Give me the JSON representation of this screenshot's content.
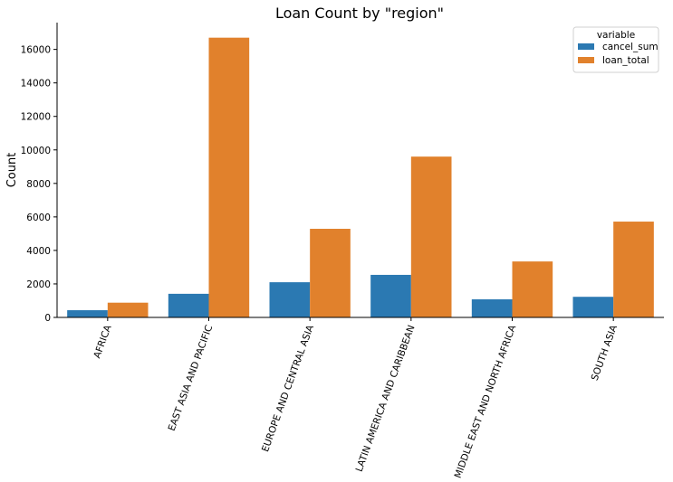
{
  "chart_data": {
    "type": "bar",
    "title": "Loan Count by \"region\"",
    "xlabel": "",
    "ylabel": "Count",
    "ylim": [
      0,
      17600
    ],
    "yticks": [
      0,
      2000,
      4000,
      6000,
      8000,
      10000,
      12000,
      14000,
      16000
    ],
    "categories": [
      "AFRICA",
      "EAST ASIA AND PACIFIC",
      "EUROPE AND CENTRAL ASIA",
      "LATIN AMERICA AND CARIBBEAN",
      "MIDDLE EAST AND NORTH AFRICA",
      "SOUTH ASIA"
    ],
    "series": [
      {
        "name": "cancel_sum",
        "color": "#2b79b2",
        "values": [
          430,
          1410,
          2100,
          2540,
          1080,
          1230
        ]
      },
      {
        "name": "loan_total",
        "color": "#e1812c",
        "values": [
          880,
          16700,
          5290,
          9600,
          3340,
          5720
        ]
      }
    ],
    "legend": {
      "title": "variable",
      "position": "top-right"
    },
    "grid": false
  }
}
